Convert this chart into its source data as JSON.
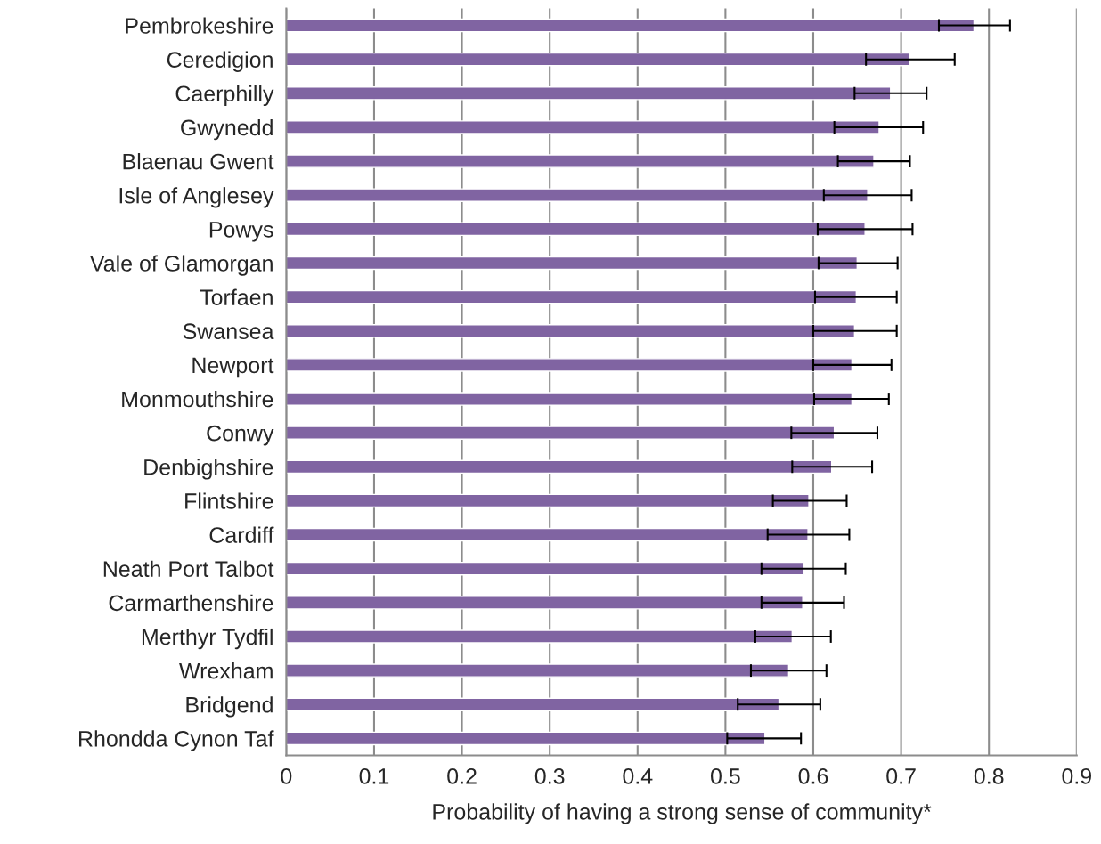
{
  "chart_data": {
    "type": "bar",
    "orientation": "horizontal",
    "xlabel": "Probability of having a strong sense of community*",
    "categories": [
      "Pembrokeshire",
      "Ceredigion",
      "Caerphilly",
      "Gwynedd",
      "Blaenau Gwent",
      "Isle of Anglesey",
      "Powys",
      "Vale of Glamorgan",
      "Torfaen",
      "Swansea",
      "Newport",
      "Monmouthshire",
      "Conwy",
      "Denbighshire",
      "Flintshire",
      "Cardiff",
      "Neath Port Talbot",
      "Carmarthenshire",
      "Merthyr Tydfil",
      "Wrexham",
      "Bridgend",
      "Rhondda Cynon Taf"
    ],
    "values": [
      0.783,
      0.71,
      0.688,
      0.675,
      0.669,
      0.662,
      0.659,
      0.65,
      0.649,
      0.647,
      0.644,
      0.644,
      0.624,
      0.621,
      0.595,
      0.594,
      0.589,
      0.588,
      0.576,
      0.572,
      0.561,
      0.545
    ],
    "errors": [
      [
        0.743,
        0.824
      ],
      [
        0.66,
        0.761
      ],
      [
        0.647,
        0.729
      ],
      [
        0.624,
        0.725
      ],
      [
        0.628,
        0.71
      ],
      [
        0.612,
        0.712
      ],
      [
        0.605,
        0.713
      ],
      [
        0.606,
        0.696
      ],
      [
        0.602,
        0.695
      ],
      [
        0.6,
        0.695
      ],
      [
        0.6,
        0.689
      ],
      [
        0.601,
        0.686
      ],
      [
        0.575,
        0.673
      ],
      [
        0.576,
        0.667
      ],
      [
        0.554,
        0.638
      ],
      [
        0.548,
        0.641
      ],
      [
        0.541,
        0.637
      ],
      [
        0.541,
        0.635
      ],
      [
        0.534,
        0.62
      ],
      [
        0.529,
        0.615
      ],
      [
        0.514,
        0.608
      ],
      [
        0.502,
        0.586
      ]
    ],
    "color": "#8064a2",
    "xlim": [
      0,
      0.9
    ],
    "xticks": [
      0,
      0.1,
      0.2,
      0.3,
      0.4,
      0.5,
      0.6,
      0.7,
      0.8,
      0.9
    ],
    "grid": "x",
    "legend": false
  }
}
